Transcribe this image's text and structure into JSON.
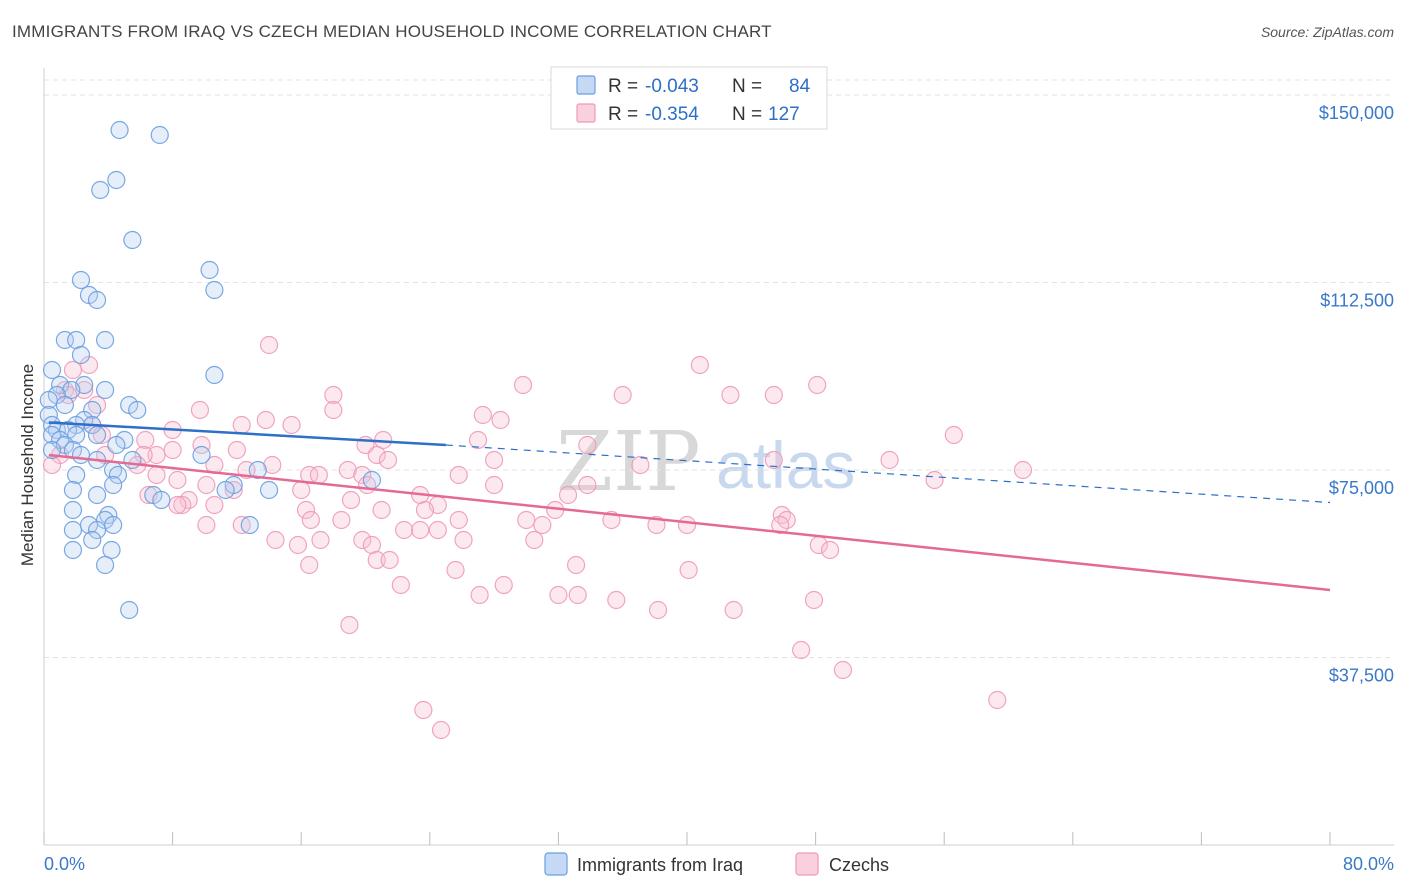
{
  "title": "IMMIGRANTS FROM IRAQ VS CZECH MEDIAN HOUSEHOLD INCOME CORRELATION CHART",
  "source": "Source: ZipAtlas.com",
  "watermark": {
    "part1": "ZIP",
    "part2": "atlas"
  },
  "colors": {
    "blue": "#6a9fe0",
    "blue_line": "#2e6fc7",
    "pink": "#f09ab6",
    "pink_line": "#e46a94",
    "label": "#3a78c8"
  },
  "legend": {
    "r_label": "R =",
    "n_label": "N =",
    "series1": {
      "r": "-0.043",
      "n": "84"
    },
    "series2": {
      "r": "-0.354",
      "n": "127"
    }
  },
  "chart_data": {
    "type": "scatter",
    "title": "IMMIGRANTS FROM IRAQ VS CZECH MEDIAN HOUSEHOLD INCOME CORRELATION CHART",
    "xlabel": "",
    "ylabel": "Median Household Income",
    "xlim": [
      0,
      80
    ],
    "ylim": [
      0,
      157000
    ],
    "x_tick_labels": [
      "0.0%",
      "80.0%"
    ],
    "y_ticks": [
      37500,
      75000,
      112500,
      150000
    ],
    "y_tick_labels": [
      "$37,500",
      "$75,000",
      "$112,500",
      "$150,000"
    ],
    "series": [
      {
        "name": "Immigrants from Iraq",
        "r": -0.043,
        "n": 84,
        "trend": {
          "x0": 0.3,
          "y0": 84500,
          "x1": 25,
          "y1": 80000,
          "dashed_to_x": 80,
          "dashed_to_y": 68500
        },
        "points": [
          [
            4.7,
            143
          ],
          [
            7.2,
            142
          ],
          [
            4.5,
            133
          ],
          [
            3.5,
            131
          ],
          [
            5.5,
            121
          ],
          [
            10.3,
            115
          ],
          [
            2.3,
            113
          ],
          [
            2.8,
            110
          ],
          [
            3.3,
            109
          ],
          [
            10.6,
            111
          ],
          [
            1.3,
            101
          ],
          [
            2.0,
            101
          ],
          [
            3.8,
            101
          ],
          [
            2.3,
            98
          ],
          [
            0.5,
            95
          ],
          [
            10.6,
            94
          ],
          [
            1.0,
            92
          ],
          [
            2.5,
            92
          ],
          [
            3.8,
            91
          ],
          [
            1.7,
            91
          ],
          [
            0.8,
            90
          ],
          [
            5.3,
            88
          ],
          [
            0.3,
            89
          ],
          [
            5.8,
            87
          ],
          [
            1.3,
            88
          ],
          [
            3.0,
            87
          ],
          [
            0.3,
            86
          ],
          [
            2.5,
            85
          ],
          [
            3.0,
            84
          ],
          [
            0.5,
            84
          ],
          [
            2.0,
            84
          ],
          [
            0.8,
            83
          ],
          [
            1.5,
            83
          ],
          [
            3.3,
            82
          ],
          [
            0.5,
            82
          ],
          [
            2.0,
            82
          ],
          [
            1.0,
            81
          ],
          [
            5.0,
            81
          ],
          [
            1.3,
            80
          ],
          [
            4.5,
            80
          ],
          [
            0.5,
            79
          ],
          [
            1.8,
            79
          ],
          [
            2.3,
            78
          ],
          [
            9.8,
            78
          ],
          [
            3.3,
            77
          ],
          [
            5.5,
            77
          ],
          [
            4.3,
            75
          ],
          [
            13.3,
            75
          ],
          [
            2.0,
            74
          ],
          [
            4.6,
            74
          ],
          [
            20.4,
            73
          ],
          [
            4.3,
            72
          ],
          [
            11.8,
            72
          ],
          [
            1.8,
            71
          ],
          [
            11.3,
            71
          ],
          [
            14.0,
            71
          ],
          [
            3.3,
            70
          ],
          [
            6.8,
            70
          ],
          [
            7.3,
            69
          ],
          [
            1.8,
            67
          ],
          [
            4.0,
            66
          ],
          [
            3.8,
            65
          ],
          [
            2.8,
            64
          ],
          [
            4.3,
            64
          ],
          [
            12.8,
            64
          ],
          [
            1.8,
            63
          ],
          [
            3.3,
            63
          ],
          [
            3.0,
            61
          ],
          [
            1.8,
            59
          ],
          [
            4.2,
            59
          ],
          [
            3.8,
            56
          ],
          [
            5.3,
            47
          ]
        ]
      },
      {
        "name": "Czechs",
        "r": -0.354,
        "n": 127,
        "trend": {
          "x0": 0.3,
          "y0": 78000,
          "x1": 80,
          "y1": 51000
        },
        "points": [
          [
            14.0,
            100
          ],
          [
            40.8,
            96
          ],
          [
            2.8,
            96
          ],
          [
            1.8,
            95
          ],
          [
            29.8,
            92
          ],
          [
            48.1,
            92
          ],
          [
            36.0,
            90
          ],
          [
            18.0,
            90
          ],
          [
            42.7,
            90
          ],
          [
            45.4,
            90
          ],
          [
            1.3,
            91
          ],
          [
            2.5,
            91
          ],
          [
            1.5,
            90
          ],
          [
            3.3,
            88
          ],
          [
            18.0,
            87
          ],
          [
            9.7,
            87
          ],
          [
            27.3,
            86
          ],
          [
            28.4,
            85
          ],
          [
            13.8,
            85
          ],
          [
            15.4,
            84
          ],
          [
            12.3,
            84
          ],
          [
            3.0,
            84
          ],
          [
            8.0,
            83
          ],
          [
            56.6,
            82
          ],
          [
            3.6,
            82
          ],
          [
            6.3,
            81
          ],
          [
            21.1,
            81
          ],
          [
            27.0,
            81
          ],
          [
            20.0,
            80
          ],
          [
            33.8,
            80
          ],
          [
            9.8,
            80
          ],
          [
            12.0,
            79
          ],
          [
            8.0,
            79
          ],
          [
            20.7,
            78
          ],
          [
            7.0,
            78
          ],
          [
            3.8,
            78
          ],
          [
            1.0,
            78
          ],
          [
            6.2,
            78
          ],
          [
            21.4,
            77
          ],
          [
            28.0,
            77
          ],
          [
            45.4,
            77
          ],
          [
            10.6,
            76
          ],
          [
            0.5,
            76
          ],
          [
            5.8,
            76
          ],
          [
            14.2,
            76
          ],
          [
            37.1,
            76
          ],
          [
            52.6,
            77
          ],
          [
            12.6,
            75
          ],
          [
            18.9,
            75
          ],
          [
            25.8,
            74
          ],
          [
            7.0,
            74
          ],
          [
            16.5,
            74
          ],
          [
            19.8,
            74
          ],
          [
            17.1,
            74
          ],
          [
            60.9,
            75
          ],
          [
            55.4,
            73
          ],
          [
            8.3,
            73
          ],
          [
            10.1,
            72
          ],
          [
            20.1,
            72
          ],
          [
            28.0,
            72
          ],
          [
            33.8,
            72
          ],
          [
            11.8,
            71
          ],
          [
            16.0,
            71
          ],
          [
            6.5,
            70
          ],
          [
            23.4,
            70
          ],
          [
            9.0,
            69
          ],
          [
            19.1,
            69
          ],
          [
            32.6,
            70
          ],
          [
            8.6,
            68
          ],
          [
            8.3,
            68
          ],
          [
            10.6,
            68
          ],
          [
            24.5,
            68
          ],
          [
            31.8,
            67
          ],
          [
            16.3,
            67
          ],
          [
            21.0,
            67
          ],
          [
            23.7,
            67
          ],
          [
            45.9,
            66
          ],
          [
            25.8,
            65
          ],
          [
            35.3,
            65
          ],
          [
            30.0,
            65
          ],
          [
            46.2,
            65
          ],
          [
            16.6,
            65
          ],
          [
            18.5,
            65
          ],
          [
            10.1,
            64
          ],
          [
            12.3,
            64
          ],
          [
            38.1,
            64
          ],
          [
            40.0,
            64
          ],
          [
            45.8,
            64
          ],
          [
            31.0,
            64
          ],
          [
            22.4,
            63
          ],
          [
            23.4,
            63
          ],
          [
            24.5,
            63
          ],
          [
            17.2,
            61
          ],
          [
            14.4,
            61
          ],
          [
            19.8,
            61
          ],
          [
            26.1,
            61
          ],
          [
            30.5,
            61
          ],
          [
            15.8,
            60
          ],
          [
            20.4,
            60
          ],
          [
            48.2,
            60
          ],
          [
            48.9,
            59
          ],
          [
            20.7,
            57
          ],
          [
            21.5,
            57
          ],
          [
            16.5,
            56
          ],
          [
            33.1,
            56
          ],
          [
            25.6,
            55
          ],
          [
            40.1,
            55
          ],
          [
            28.6,
            52
          ],
          [
            22.2,
            52
          ],
          [
            32.0,
            50
          ],
          [
            27.1,
            50
          ],
          [
            33.2,
            50
          ],
          [
            35.6,
            49
          ],
          [
            38.2,
            47
          ],
          [
            47.9,
            49
          ],
          [
            42.9,
            47
          ],
          [
            19.0,
            44
          ],
          [
            47.1,
            39
          ],
          [
            49.7,
            35
          ],
          [
            59.3,
            29
          ],
          [
            23.6,
            27
          ],
          [
            24.7,
            23
          ]
        ]
      }
    ]
  },
  "bottom_legend": {
    "item1": "Immigrants from Iraq",
    "item2": "Czechs"
  }
}
